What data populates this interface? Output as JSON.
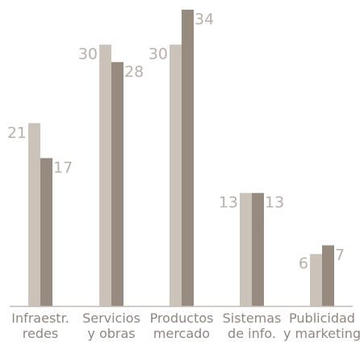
{
  "chart_data": {
    "type": "bar",
    "categories": [
      [
        "Infraestr.",
        "redes"
      ],
      [
        "Servicios",
        "y obras"
      ],
      [
        "Productos",
        "mercado"
      ],
      [
        "Sistemas",
        "de info."
      ],
      [
        "Publicidad",
        "y marketing"
      ]
    ],
    "series": [
      {
        "values": [
          21,
          30,
          30,
          13,
          6
        ],
        "color": "#cbc3b9"
      },
      {
        "values": [
          17,
          28,
          34,
          13,
          7
        ],
        "color": "#978b7f"
      }
    ],
    "ylim": [
      0,
      34
    ],
    "grid": false,
    "axis_color": "#c4bcb2",
    "label_color": "#b9b1a7",
    "category_color": "#8f877d"
  }
}
